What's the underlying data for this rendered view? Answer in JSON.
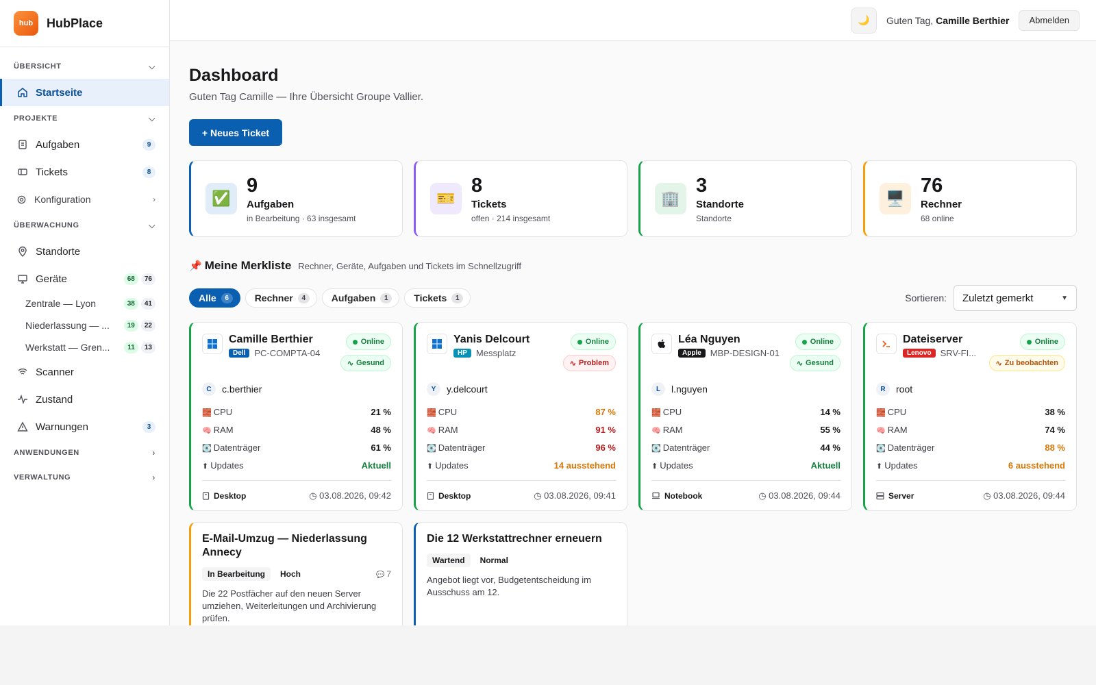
{
  "app": {
    "logo_text": "hub",
    "name": "HubPlace"
  },
  "topbar": {
    "theme_icon": "🌙",
    "greeting_prefix": "Guten Tag,",
    "user_name": "Camille Berthier",
    "logout_label": "Abmelden"
  },
  "sidebar": {
    "sections": {
      "overview": "ÜBERSICHT",
      "projects": "PROJEKTE",
      "monitoring": "ÜBERWACHUNG",
      "apps": "ANWENDUNGEN",
      "admin": "VERWALTUNG"
    },
    "home": "Startseite",
    "tasks": {
      "label": "Aufgaben",
      "count": "9"
    },
    "tickets": {
      "label": "Tickets",
      "count": "8"
    },
    "config": "Konfiguration",
    "sites": "Standorte",
    "devices": {
      "label": "Geräte",
      "online": "68",
      "total": "76"
    },
    "locations": [
      {
        "label": "Zentrale — Lyon",
        "online": "38",
        "total": "41"
      },
      {
        "label": "Niederlassung — ...",
        "online": "19",
        "total": "22"
      },
      {
        "label": "Werkstatt — Gren...",
        "online": "11",
        "total": "13"
      }
    ],
    "scanner": "Scanner",
    "health": "Zustand",
    "warnings": {
      "label": "Warnungen",
      "count": "3"
    }
  },
  "page": {
    "title": "Dashboard",
    "subtitle": "Guten Tag Camille — Ihre Übersicht Groupe Vallier.",
    "new_ticket": "+ Neues Ticket"
  },
  "stats": [
    {
      "icon": "✅",
      "value": "9",
      "label": "Aufgaben",
      "sub": "in Bearbeitung · 63 insgesamt",
      "color": "#0b5fb0",
      "bg": "#e0ecf8"
    },
    {
      "icon": "🎫",
      "value": "8",
      "label": "Tickets",
      "sub": "offen · 214 insgesamt",
      "color": "#8b5cf6",
      "bg": "#efe9fd"
    },
    {
      "icon": "🏢",
      "value": "3",
      "label": "Standorte",
      "sub": "Standorte",
      "color": "#16a34a",
      "bg": "#e3f4e8"
    },
    {
      "icon": "🖥️",
      "value": "76",
      "label": "Rechner",
      "sub": "68 online",
      "color": "#f59e0b",
      "bg": "#fdf1de"
    }
  ],
  "watchlist": {
    "pin": "📌",
    "title": "Meine Merkliste",
    "desc": "Rechner, Geräte, Aufgaben und Tickets im Schnellzugriff",
    "filters": [
      {
        "label": "Alle",
        "count": "6"
      },
      {
        "label": "Rechner",
        "count": "4"
      },
      {
        "label": "Aufgaben",
        "count": "1"
      },
      {
        "label": "Tickets",
        "count": "1"
      }
    ],
    "sort_label": "Sortieren:",
    "sort_value": "Zuletzt gemerkt"
  },
  "metric_labels": {
    "cpu": "CPU",
    "ram": "RAM",
    "disk": "Datenträger",
    "updates": "Updates"
  },
  "metric_icons": {
    "cpu": "🧱",
    "ram": "🧠",
    "disk": "💽",
    "updates": "⬆"
  },
  "computers": [
    {
      "name": "Camille Berthier",
      "brand": "Dell",
      "brand_color": "#0b5fb0",
      "host": "PC-COMPTA-04",
      "os": "windows",
      "status": "Online",
      "health": "Gesund",
      "health_kind": "ok",
      "user_initial": "C",
      "user": "c.berthier",
      "cpu": "21 %",
      "ram": "48 %",
      "disk": "61 %",
      "updates": "Aktuell",
      "type": "Desktop",
      "time": "03.08.2026, 09:42",
      "border": "#16a34a"
    },
    {
      "name": "Yanis Delcourt",
      "brand": "HP",
      "brand_color": "#0891b2",
      "host": "Messplatz",
      "os": "windows",
      "status": "Online",
      "health": "Problem",
      "health_kind": "bad",
      "user_initial": "Y",
      "user": "y.delcourt",
      "cpu": "87 %",
      "ram": "91 %",
      "disk": "96 %",
      "updates": "14 ausstehend",
      "type": "Desktop",
      "time": "03.08.2026, 09:41",
      "border": "#16a34a"
    },
    {
      "name": "Léa Nguyen",
      "brand": "Apple",
      "brand_color": "#18181b",
      "host": "MBP-DESIGN-01",
      "os": "apple",
      "status": "Online",
      "health": "Gesund",
      "health_kind": "ok",
      "user_initial": "L",
      "user": "l.nguyen",
      "cpu": "14 %",
      "ram": "55 %",
      "disk": "44 %",
      "updates": "Aktuell",
      "type": "Notebook",
      "time": "03.08.2026, 09:44",
      "border": "#16a34a"
    },
    {
      "name": "Dateiserver",
      "brand": "Lenovo",
      "brand_color": "#dc2626",
      "host": "SRV-FI...",
      "os": "terminal",
      "status": "Online",
      "health": "Zu beobachten",
      "health_kind": "warn",
      "user_initial": "R",
      "user": "root",
      "cpu": "38 %",
      "ram": "74 %",
      "disk": "88 %",
      "updates": "6 ausstehend",
      "type": "Server",
      "time": "03.08.2026, 09:44",
      "border": "#16a34a"
    }
  ],
  "items": [
    {
      "title": "E-Mail-Umzug — Niederlassung Annecy",
      "status": "In Bearbeitung",
      "priority": "Hoch",
      "comments": "7",
      "text": "Die 22 Postfächer auf den neuen Server umziehen, Weiterleitungen und Archivierung prüfen.",
      "border": "#f59e0b"
    },
    {
      "title": "Die 12 Werkstattrechner erneuern",
      "status": "Wartend",
      "priority": "Normal",
      "comments": "",
      "text": "Angebot liegt vor, Budgetentscheidung im Ausschuss am 12.",
      "border": "#0b5fb0"
    }
  ]
}
